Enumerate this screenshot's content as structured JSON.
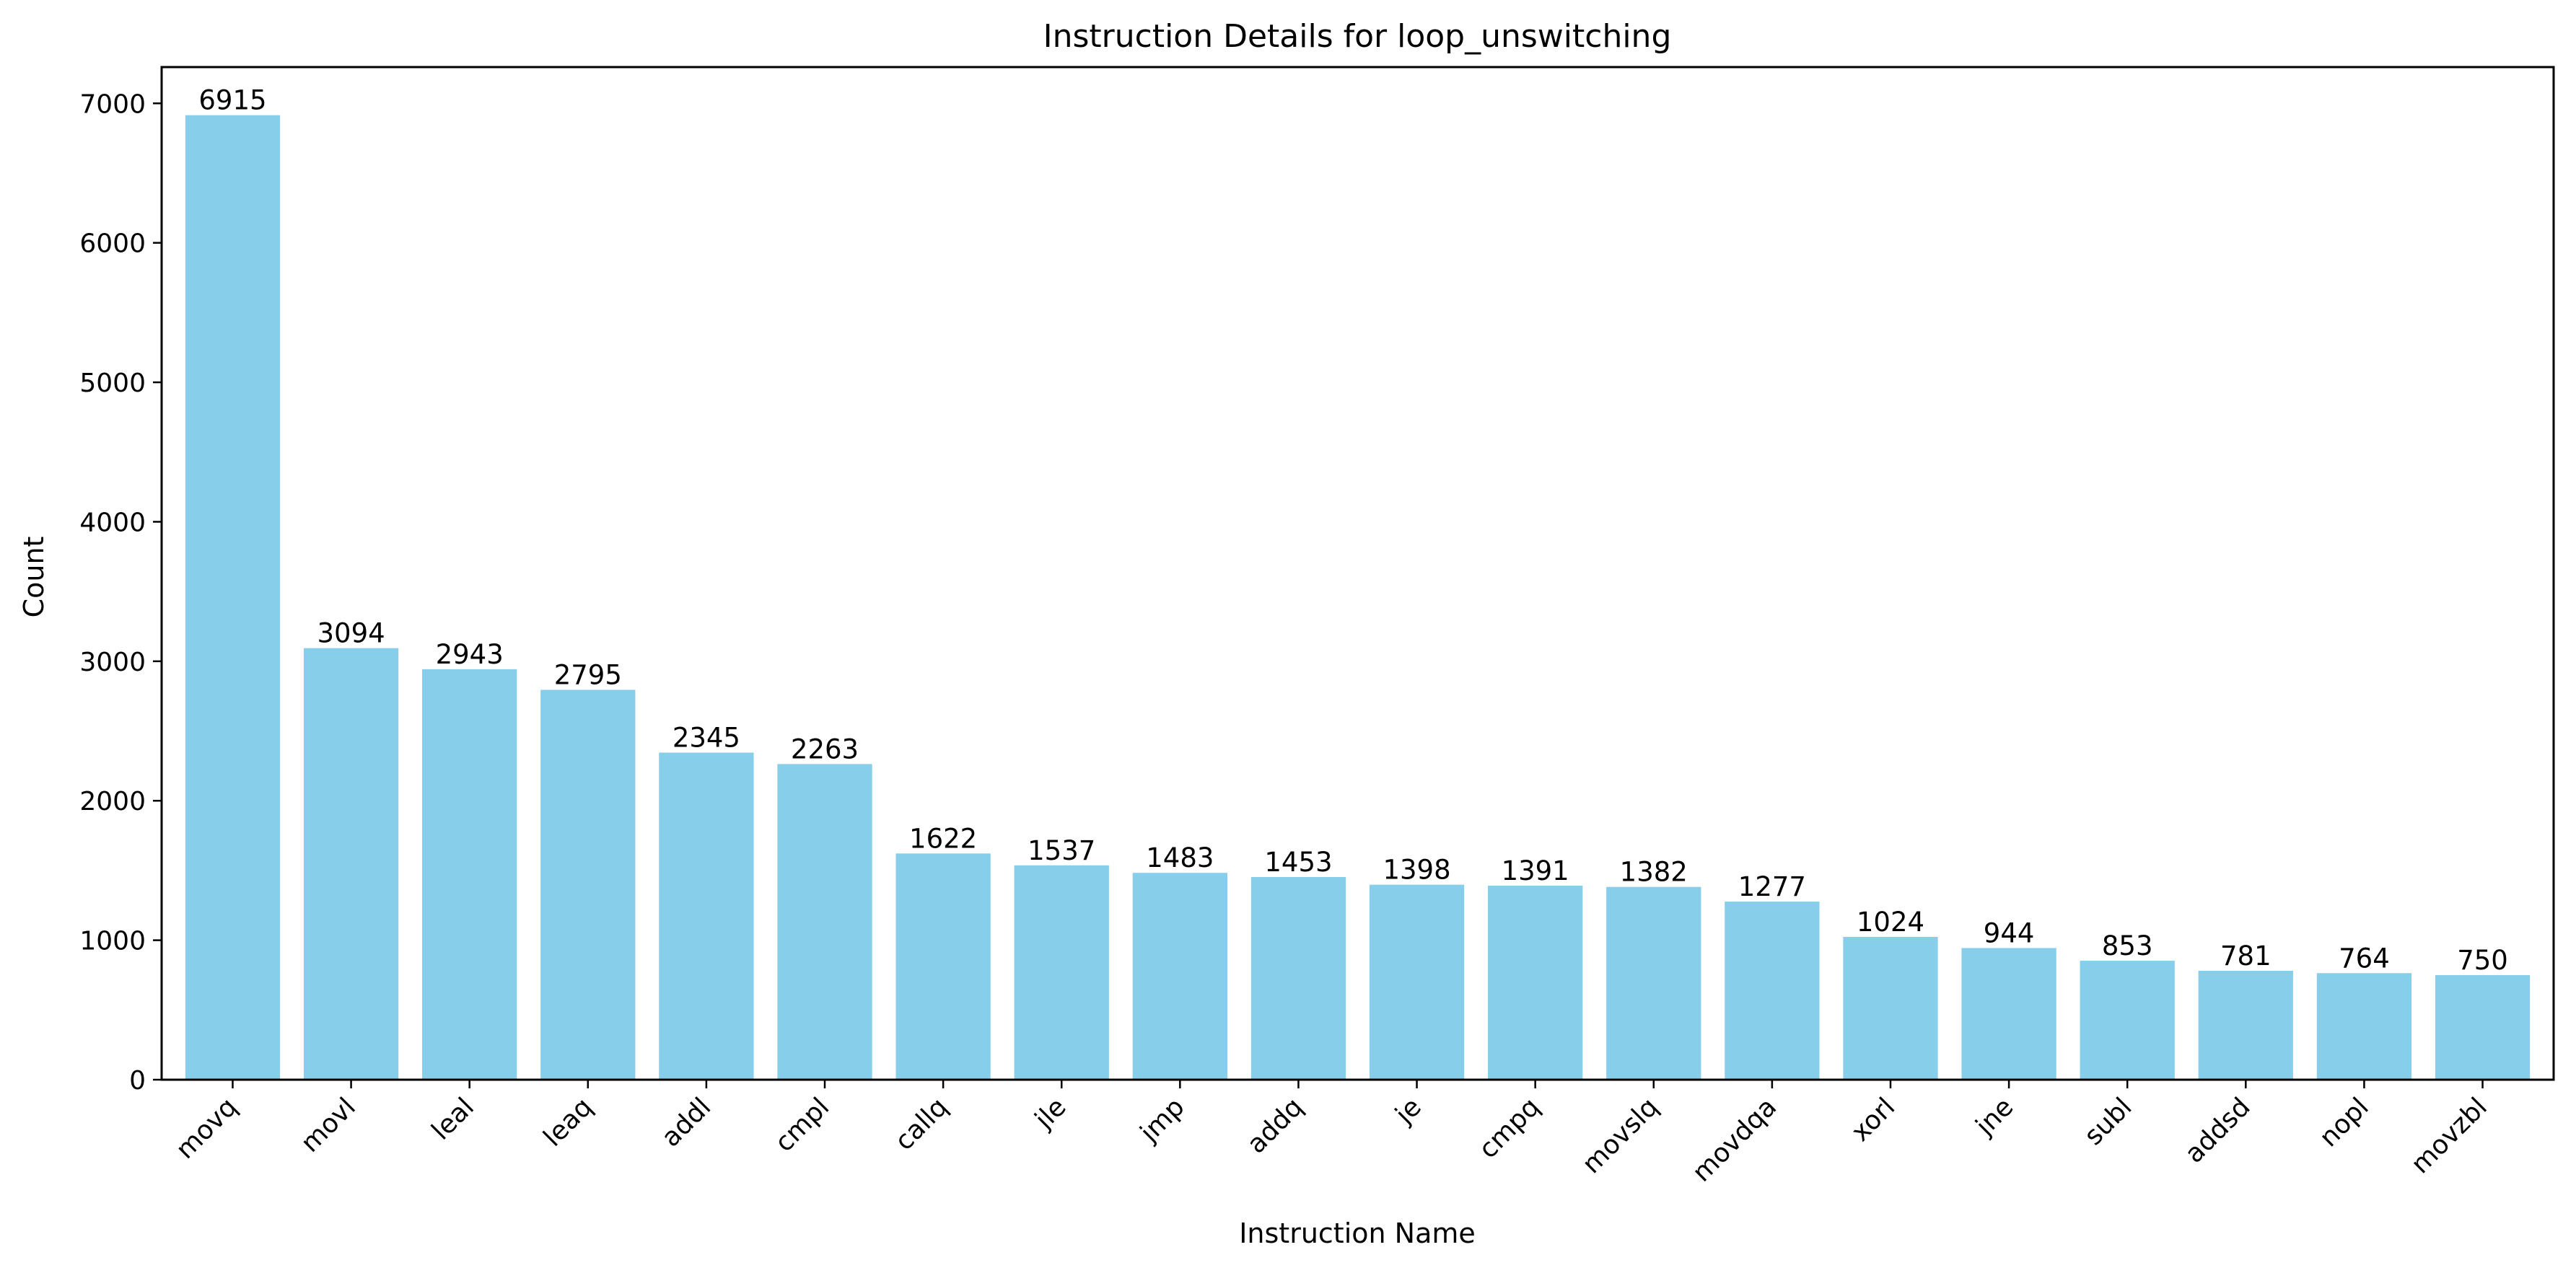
{
  "chart_data": {
    "type": "bar",
    "title": "Instruction Details for loop_unswitching",
    "xlabel": "Instruction Name",
    "ylabel": "Count",
    "categories": [
      "movq",
      "movl",
      "leal",
      "leaq",
      "addl",
      "cmpl",
      "callq",
      "jle",
      "jmp",
      "addq",
      "je",
      "cmpq",
      "movslq",
      "movdqa",
      "xorl",
      "jne",
      "subl",
      "addsd",
      "nopl",
      "movzbl"
    ],
    "values": [
      6915,
      3094,
      2943,
      2795,
      2345,
      2263,
      1622,
      1537,
      1483,
      1453,
      1398,
      1391,
      1382,
      1277,
      1024,
      944,
      853,
      781,
      764,
      750
    ],
    "ylim": [
      0,
      7260
    ],
    "yticks": [
      0,
      1000,
      2000,
      3000,
      4000,
      5000,
      6000,
      7000
    ],
    "bar_color": "#87CEEB",
    "grid": false,
    "legend": "none",
    "data_labels": true
  }
}
